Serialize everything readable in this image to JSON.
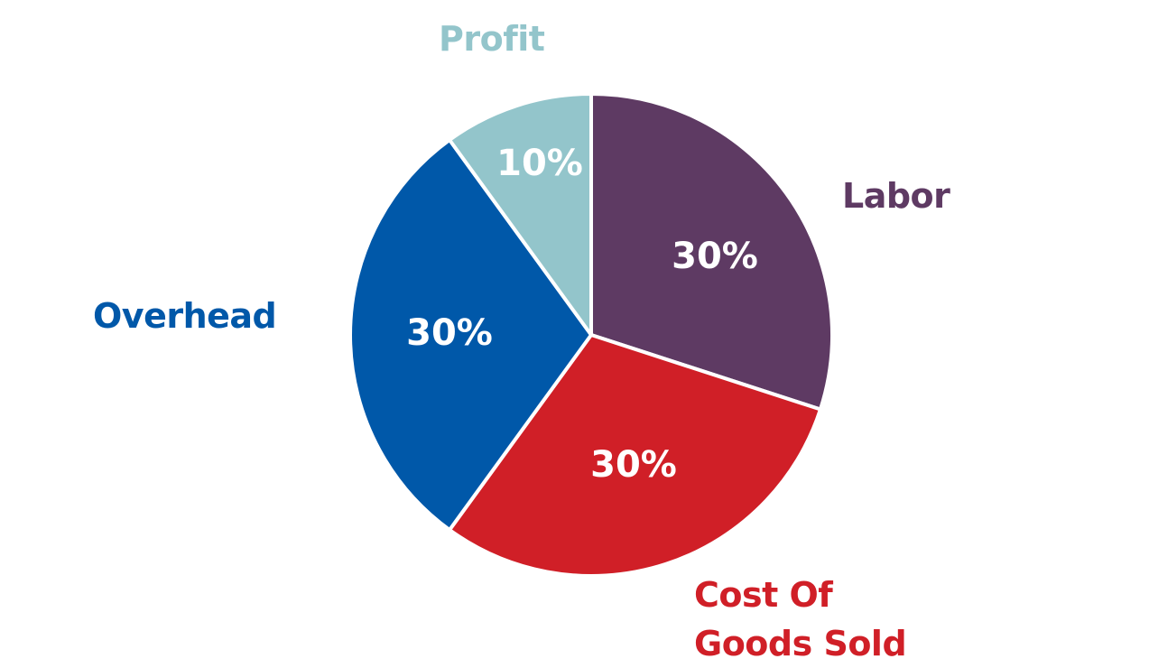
{
  "chart_data": {
    "type": "pie",
    "title": "",
    "center": [
      655,
      371
    ],
    "radius": 267,
    "start_angle_deg": 0,
    "direction": "clockwise",
    "categories": [
      "Labor",
      "Cost Of Goods Sold",
      "Overhead",
      "Profit"
    ],
    "values": [
      30,
      30,
      30,
      10
    ],
    "value_labels": [
      "30%",
      "30%",
      "30%",
      "10%"
    ],
    "colors": [
      "#5E3A63",
      "#D01F27",
      "#0058A9",
      "#93C5CB"
    ],
    "legend_position": "outside labels"
  },
  "labels": {
    "profit": "Profit",
    "labor": "Labor",
    "overhead": "Overhead",
    "cogs_line1": "Cost Of",
    "cogs_line2": "Goods Sold"
  }
}
